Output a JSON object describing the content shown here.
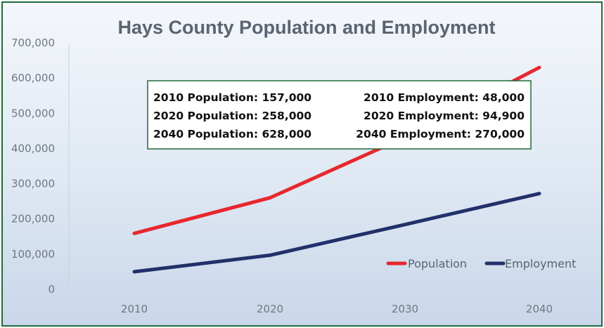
{
  "chart_data": {
    "type": "line",
    "title": "Hays County Population and Employment",
    "x": [
      2010,
      2020,
      2030,
      2040
    ],
    "x_tick_labels": [
      "2010",
      "2020",
      "2030",
      "2040"
    ],
    "y_tick_labels": [
      "0",
      "100,000",
      "200,000",
      "300,000",
      "400,000",
      "500,000",
      "600,000",
      "700,000"
    ],
    "ylim": [
      0,
      700000
    ],
    "grid": false,
    "legend_position": "bottom-right",
    "series": [
      {
        "name": "Population",
        "color": "#e8272e",
        "values": [
          157000,
          258000,
          430000,
          628000
        ]
      },
      {
        "name": "Employment",
        "color": "#22306a",
        "values": [
          48000,
          94900,
          182000,
          270000
        ]
      }
    ],
    "annotation": {
      "border_color": "#1e6b3a",
      "lines": [
        [
          "2010 Population: 157,000",
          "2010 Employment: 48,000"
        ],
        [
          "2020 Population: 258,000",
          "2020 Employment: 94,900"
        ],
        [
          "2040 Population: 628,000",
          "2040 Employment: 270,000"
        ]
      ]
    }
  }
}
